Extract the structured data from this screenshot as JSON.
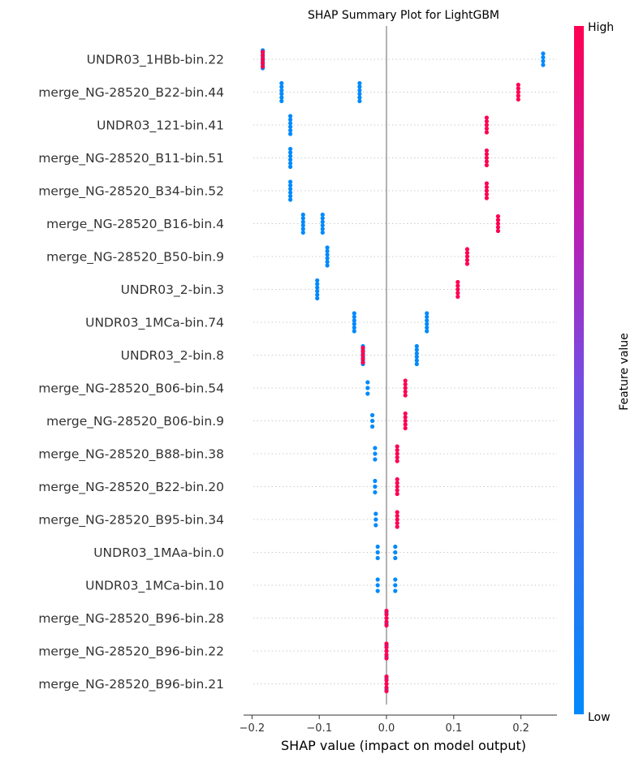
{
  "chart_data": {
    "type": "scatter",
    "title": "SHAP Summary Plot for LightGBM",
    "xlabel": "SHAP value (impact on model output)",
    "xlim": [
      -0.2,
      0.25
    ],
    "xticks": [
      -0.2,
      -0.1,
      0.0,
      0.1,
      0.2
    ],
    "xtick_labels": [
      "−0.2",
      "−0.1",
      "0.0",
      "0.1",
      "0.2"
    ],
    "colorbar": {
      "label": "Feature value",
      "high_label": "High",
      "low_label": "Low",
      "low_color": "#008afb",
      "high_color": "#ff0052"
    },
    "features": [
      {
        "name": "UNDR03_1HBb-bin.22",
        "low": [
          -0.184
        ],
        "high": [
          -0.184
        ],
        "extra": [
          0.233
        ]
      },
      {
        "name": "merge_NG-28520_B22-bin.44",
        "low": [
          -0.156,
          -0.04
        ],
        "high": [
          0.196
        ],
        "extra": []
      },
      {
        "name": "UNDR03_121-bin.41",
        "low": [
          -0.143
        ],
        "high": [
          0.149
        ],
        "extra": []
      },
      {
        "name": "merge_NG-28520_B11-bin.51",
        "low": [
          -0.143
        ],
        "high": [
          0.149
        ],
        "extra": []
      },
      {
        "name": "merge_NG-28520_B34-bin.52",
        "low": [
          -0.143
        ],
        "high": [
          0.149
        ],
        "extra": []
      },
      {
        "name": "merge_NG-28520_B16-bin.4",
        "low": [
          -0.124,
          -0.095
        ],
        "high": [
          0.166
        ],
        "extra": []
      },
      {
        "name": "merge_NG-28520_B50-bin.9",
        "low": [
          -0.088
        ],
        "high": [
          0.12
        ],
        "extra": []
      },
      {
        "name": "UNDR03_2-bin.3",
        "low": [
          -0.103
        ],
        "high": [
          0.106
        ],
        "extra": []
      },
      {
        "name": "UNDR03_1MCa-bin.74",
        "low": [
          -0.048,
          0.06
        ],
        "high": [],
        "extra": []
      },
      {
        "name": "UNDR03_2-bin.8",
        "low": [
          -0.035,
          0.045
        ],
        "high": [
          -0.035
        ],
        "extra": []
      },
      {
        "name": "merge_NG-28520_B06-bin.54",
        "low": [
          -0.028
        ],
        "high": [
          0.028
        ],
        "extra": []
      },
      {
        "name": "merge_NG-28520_B06-bin.9",
        "low": [
          -0.021
        ],
        "high": [
          0.028
        ],
        "extra": []
      },
      {
        "name": "merge_NG-28520_B88-bin.38",
        "low": [
          -0.017
        ],
        "high": [
          0.016
        ],
        "extra": []
      },
      {
        "name": "merge_NG-28520_B22-bin.20",
        "low": [
          -0.017
        ],
        "high": [
          0.016
        ],
        "extra": []
      },
      {
        "name": "merge_NG-28520_B95-bin.34",
        "low": [
          -0.016
        ],
        "high": [
          0.016
        ],
        "extra": []
      },
      {
        "name": "UNDR03_1MAa-bin.0",
        "low": [
          -0.013,
          0.013
        ],
        "high": [],
        "extra": []
      },
      {
        "name": "UNDR03_1MCa-bin.10",
        "low": [
          -0.013,
          0.013
        ],
        "high": [],
        "extra": []
      },
      {
        "name": "merge_NG-28520_B96-bin.28",
        "low": [
          0.0
        ],
        "high": [
          0.0
        ],
        "extra": []
      },
      {
        "name": "merge_NG-28520_B96-bin.22",
        "low": [
          0.0
        ],
        "high": [
          0.0
        ],
        "extra": []
      },
      {
        "name": "merge_NG-28520_B96-bin.21",
        "low": [
          0.0
        ],
        "high": [
          0.0
        ],
        "extra": []
      }
    ]
  }
}
